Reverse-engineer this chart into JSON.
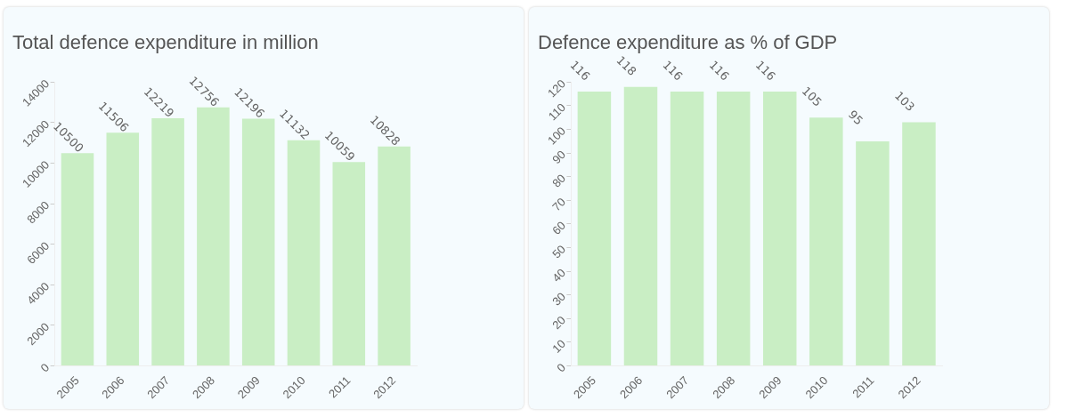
{
  "chart_data": [
    {
      "type": "bar",
      "title": "Total defence expenditure in million",
      "categories": [
        "2005",
        "2006",
        "2007",
        "2008",
        "2009",
        "2010",
        "2011",
        "2012"
      ],
      "values": [
        10500,
        11506,
        12219,
        12756,
        12196,
        11132,
        10059,
        10828
      ],
      "color": "#c9eec4",
      "ylim": [
        0,
        14000
      ],
      "yticks": [
        0,
        2000,
        4000,
        6000,
        8000,
        10000,
        12000,
        14000
      ],
      "grid": false,
      "data_labels": true
    },
    {
      "type": "bar",
      "title": "Defence expenditure as % of GDP",
      "categories": [
        "2005",
        "2006",
        "2007",
        "2008",
        "2009",
        "2010",
        "2011",
        "2012"
      ],
      "values": [
        116,
        118,
        116,
        116,
        116,
        105,
        95,
        103
      ],
      "color": "#c9eec4",
      "ylim": [
        0,
        120
      ],
      "yticks": [
        0,
        10,
        20,
        30,
        40,
        50,
        60,
        70,
        80,
        90,
        100,
        110,
        120
      ],
      "grid": false,
      "data_labels": true
    }
  ]
}
